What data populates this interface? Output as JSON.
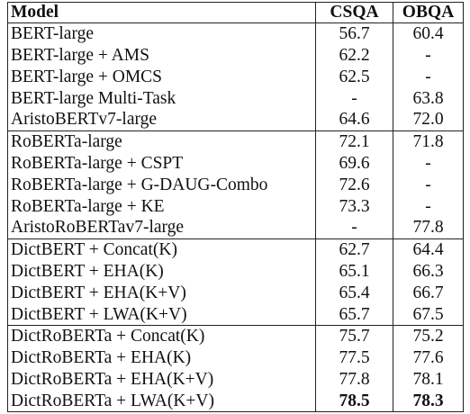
{
  "table": {
    "headers": [
      "Model",
      "CSQA",
      "OBQA"
    ],
    "groups": [
      {
        "rows": [
          {
            "model": "BERT-large",
            "csqa": "56.7",
            "obqa": "60.4"
          },
          {
            "model": "BERT-large + AMS",
            "csqa": "62.2",
            "obqa": "-"
          },
          {
            "model": "BERT-large + OMCS",
            "csqa": "62.5",
            "obqa": "-"
          },
          {
            "model": "BERT-large Multi-Task",
            "csqa": "-",
            "obqa": "63.8"
          },
          {
            "model": "AristoBERTv7-large",
            "csqa": "64.6",
            "obqa": "72.0"
          }
        ]
      },
      {
        "rows": [
          {
            "model": "RoBERTa-large",
            "csqa": "72.1",
            "obqa": "71.8"
          },
          {
            "model": "RoBERTa-large + CSPT",
            "csqa": "69.6",
            "obqa": "-"
          },
          {
            "model": "RoBERTa-large + G-DAUG-Combo",
            "csqa": "72.6",
            "obqa": "-"
          },
          {
            "model": "RoBERTa-large + KE",
            "csqa": "73.3",
            "obqa": "-"
          },
          {
            "model": "AristoRoBERTav7-large",
            "csqa": "-",
            "obqa": "77.8"
          }
        ]
      },
      {
        "rows": [
          {
            "model": "DictBERT + Concat(K)",
            "csqa": "62.7",
            "obqa": "64.4"
          },
          {
            "model": "DictBERT + EHA(K)",
            "csqa": "65.1",
            "obqa": "66.3"
          },
          {
            "model": "DictBERT + EHA(K+V)",
            "csqa": "65.4",
            "obqa": "66.7"
          },
          {
            "model": "DictBERT + LWA(K+V)",
            "csqa": "65.7",
            "obqa": "67.5"
          }
        ]
      },
      {
        "rows": [
          {
            "model": "DictRoBERTa + Concat(K)",
            "csqa": "75.7",
            "obqa": "75.2"
          },
          {
            "model": "DictRoBERTa + EHA(K)",
            "csqa": "77.5",
            "obqa": "77.6"
          },
          {
            "model": "DictRoBERTa + EHA(K+V)",
            "csqa": "77.8",
            "obqa": "78.1"
          },
          {
            "model": "DictRoBERTa + LWA(K+V)",
            "csqa": "78.5",
            "obqa": "78.3",
            "bold": true
          }
        ]
      }
    ]
  }
}
